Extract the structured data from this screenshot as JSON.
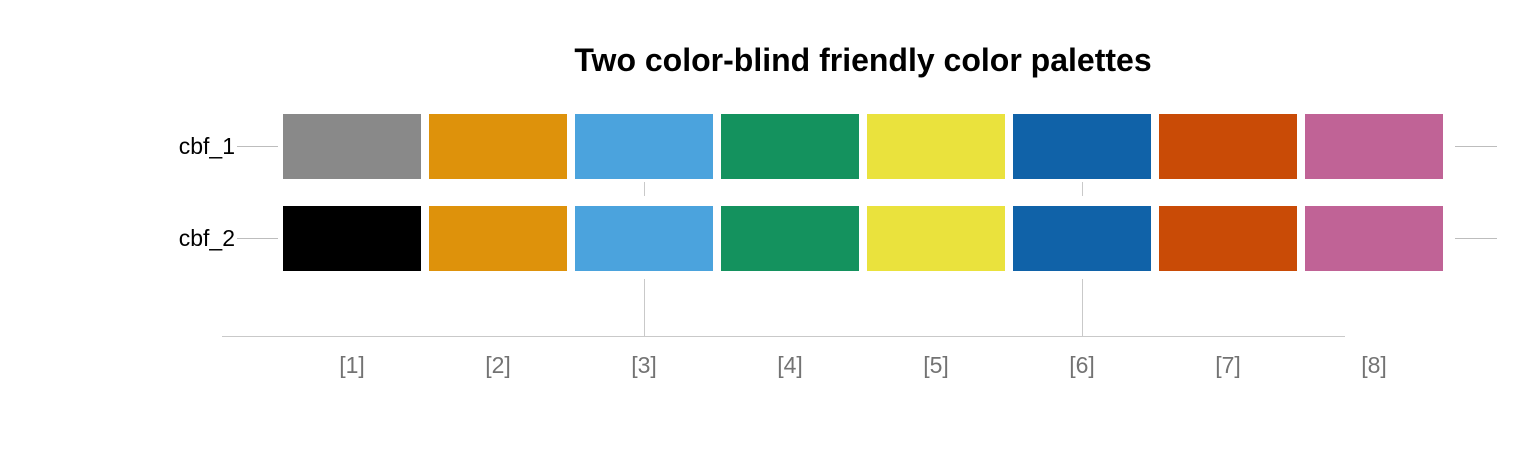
{
  "chart_data": {
    "type": "heatmap",
    "title": "Two color-blind friendly color palettes",
    "categories": [
      "[1]",
      "[2]",
      "[3]",
      "[4]",
      "[5]",
      "[6]",
      "[7]",
      "[8]"
    ],
    "rows": [
      {
        "label": "cbf_1",
        "colors": [
          "#898989",
          "#DE920B",
          "#4BA3DD",
          "#14925E",
          "#EAE23D",
          "#1062A8",
          "#C94B06",
          "#C06396"
        ]
      },
      {
        "label": "cbf_2",
        "colors": [
          "#000000",
          "#DE920B",
          "#4BA3DD",
          "#14925E",
          "#EAE23D",
          "#1062A8",
          "#C94B06",
          "#C06396"
        ]
      }
    ],
    "layout_hints": {
      "gridline_columns": [
        3,
        6
      ],
      "grid_on": true,
      "legend": "none"
    }
  },
  "style": {
    "title_color": "#000000",
    "row_label_color": "#000000",
    "x_label_color": "#737373",
    "axis_line_color": "#C9C9C9",
    "tick_color": "#BDBDBD",
    "gridline_color": "#C9C9C9",
    "background": "#FFFFFF"
  }
}
